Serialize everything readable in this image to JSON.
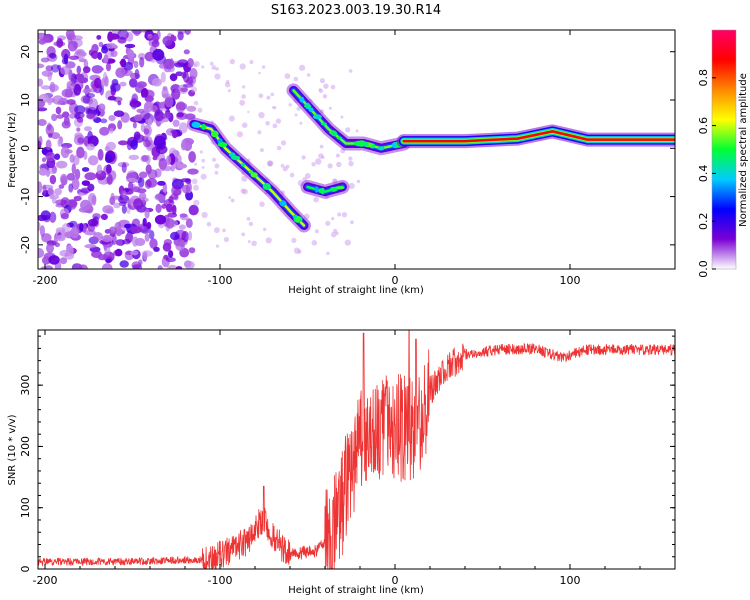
{
  "figure": {
    "title": "S163.2023.003.19.30.R14"
  },
  "colors": {
    "snr_line": "#ee3333",
    "frame": "#000000",
    "background": "#ffffff"
  },
  "chart_data": [
    {
      "type": "heatmap",
      "xlabel": "Height of straight line (km)",
      "ylabel": "Frequency (Hz)",
      "xlim": [
        -204,
        160
      ],
      "ylim": [
        -25,
        24.5
      ],
      "x_ticks": [
        -200,
        -100,
        0,
        100
      ],
      "y_ticks": [
        -20,
        -10,
        0,
        10,
        20
      ],
      "colorbar": {
        "label": "Normalized spectral amplitude",
        "range": [
          0,
          1
        ],
        "ticks": [
          0.0,
          0.2,
          0.4,
          0.6,
          0.8
        ],
        "colormap": [
          "#ffffff",
          "#7a00d4",
          "#0000ff",
          "#00ccff",
          "#00ff33",
          "#ffff00",
          "#ff8800",
          "#ff0000",
          "#ff0066"
        ]
      },
      "ridges": [
        {
          "name": "ridge-main",
          "points": [
            [
              -115,
              5
            ],
            [
              -105,
              4
            ],
            [
              -97,
              0
            ],
            [
              -85,
              -4
            ],
            [
              -70,
              -9
            ],
            [
              -60,
              -13
            ],
            [
              -52,
              -16
            ]
          ],
          "amplitude": 0.6
        },
        {
          "name": "ridge-upper",
          "points": [
            [
              -58,
              12
            ],
            [
              -48,
              8
            ],
            [
              -38,
              4
            ],
            [
              -28,
              1
            ],
            [
              -18,
              1
            ],
            [
              -8,
              0
            ],
            [
              5,
              1
            ]
          ],
          "amplitude": 0.55
        },
        {
          "name": "ridge-lower",
          "points": [
            [
              -50,
              -8
            ],
            [
              -40,
              -9
            ],
            [
              -30,
              -8
            ]
          ],
          "amplitude": 0.5
        },
        {
          "name": "ridge-carrier",
          "points": [
            [
              5,
              1.5
            ],
            [
              40,
              1.5
            ],
            [
              70,
              2.0
            ],
            [
              90,
              3.5
            ],
            [
              110,
              1.8
            ],
            [
              160,
              1.8
            ]
          ],
          "amplitude": 0.9
        }
      ],
      "noise_region": {
        "x_range": [
          -204,
          -115
        ],
        "y_range": [
          -25,
          24.5
        ],
        "amplitude": 0.3
      }
    },
    {
      "type": "line",
      "xlabel": "Height of straight line (km)",
      "ylabel": "SNR (10 * v/v)",
      "xlim": [
        -204,
        160
      ],
      "ylim": [
        0,
        390
      ],
      "x_ticks": [
        -200,
        -100,
        0,
        100
      ],
      "y_ticks": [
        0,
        100,
        200,
        300
      ],
      "series": [
        {
          "envelope": [
            {
              "x": -204,
              "y": 12
            },
            {
              "x": -150,
              "y": 12
            },
            {
              "x": -110,
              "y": 15
            },
            {
              "x": -100,
              "y": 22
            },
            {
              "x": -85,
              "y": 45
            },
            {
              "x": -75,
              "y": 85
            },
            {
              "x": -68,
              "y": 45
            },
            {
              "x": -60,
              "y": 22
            },
            {
              "x": -45,
              "y": 30
            },
            {
              "x": -35,
              "y": 60
            },
            {
              "x": -25,
              "y": 160
            },
            {
              "x": -18,
              "y": 220
            },
            {
              "x": -10,
              "y": 230
            },
            {
              "x": -3,
              "y": 240
            },
            {
              "x": 5,
              "y": 230
            },
            {
              "x": 12,
              "y": 220
            },
            {
              "x": 20,
              "y": 290
            },
            {
              "x": 30,
              "y": 330
            },
            {
              "x": 40,
              "y": 350
            },
            {
              "x": 60,
              "y": 358
            },
            {
              "x": 80,
              "y": 360
            },
            {
              "x": 95,
              "y": 345
            },
            {
              "x": 110,
              "y": 358
            },
            {
              "x": 160,
              "y": 358
            }
          ],
          "peaks": [
            {
              "x": -75,
              "y": 135
            },
            {
              "x": -18,
              "y": 385
            },
            {
              "x": 8,
              "y": 390
            },
            {
              "x": 12,
              "y": 375
            }
          ]
        }
      ]
    }
  ]
}
